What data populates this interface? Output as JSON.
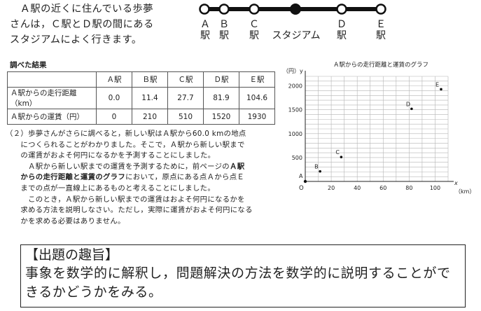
{
  "intro": {
    "text": "　Ａ駅の近くに住んでいる歩夢\nさんは，Ｃ駅とＤ駅の間にある\nスタジアムによく行きます。"
  },
  "rail_map": {
    "stations": [
      {
        "letter": "Ａ",
        "suffix": "駅"
      },
      {
        "letter": "Ｂ",
        "suffix": "駅"
      },
      {
        "letter": "Ｃ",
        "suffix": "駅"
      },
      {
        "letter": "",
        "suffix": "スタジアム"
      },
      {
        "letter": "Ｄ",
        "suffix": "駅"
      },
      {
        "letter": "Ｅ",
        "suffix": "駅"
      }
    ]
  },
  "results": {
    "title": "調べた結果",
    "columns": [
      "",
      "Ａ駅",
      "Ｂ駅",
      "Ｃ駅",
      "Ｄ駅",
      "Ｅ駅"
    ],
    "rows": [
      {
        "label": "Ａ駅からの走行距離（km）",
        "values": [
          "0.0",
          "11.4",
          "27.7",
          "81.9",
          "104.6"
        ]
      },
      {
        "label": "Ａ駅からの運賃（円）",
        "values": [
          "0",
          "210",
          "510",
          "1520",
          "1930"
        ]
      }
    ]
  },
  "question2": {
    "p1": "（２）歩夢さんがさらに調べると，新しい駅はＡ駅から60.0 kmの地点\n　　につくられることがわかりました。そこで，Ａ駅から新しい駅まで\n　　の運賃がおよそ何円になるかを予測することにしました。",
    "p2a": "　　　Ａ駅から新しい駅までの運賃を予測するために，前ページの",
    "p2b": "Ａ駅\n　　からの走行距離と運賃のグラフ",
    "p2c": "において，原点にある点Ａから点Ｅ\n　　までの点が一直線上にあるものと考えることにしました。",
    "p3": "　　　このとき，Ａ駅から新しい駅までの運賃はおよそ何円になるかを\n　　求める方法を説明しなさい。ただし，実際に運賃がおよそ何円になる\n　　かを求める必要はありません。"
  },
  "chart_data": {
    "type": "scatter",
    "title": "Ａ駅からの走行距離と運賃のグラフ",
    "ylabel": "（円）y",
    "xlabel": "x",
    "xunit": "（km）",
    "origin_label": "O",
    "xlim": [
      0,
      110
    ],
    "ylim": [
      0,
      2200
    ],
    "xticks": [
      "20",
      "40",
      "60",
      "80",
      "100"
    ],
    "yticks": [
      "500",
      "1000",
      "1500",
      "2000"
    ],
    "grid": true,
    "points": [
      {
        "label": "A",
        "x": 0.0,
        "y": 0
      },
      {
        "label": "B",
        "x": 11.4,
        "y": 210
      },
      {
        "label": "C",
        "x": 27.7,
        "y": 510
      },
      {
        "label": "D",
        "x": 81.9,
        "y": 1520
      },
      {
        "label": "E",
        "x": 104.6,
        "y": 1930
      }
    ]
  },
  "aim": {
    "title": "【出題の趣旨】",
    "body": "事象を数学的に解釈し，問題解決の方法を数学的に説明することができるかどうかをみる。"
  }
}
